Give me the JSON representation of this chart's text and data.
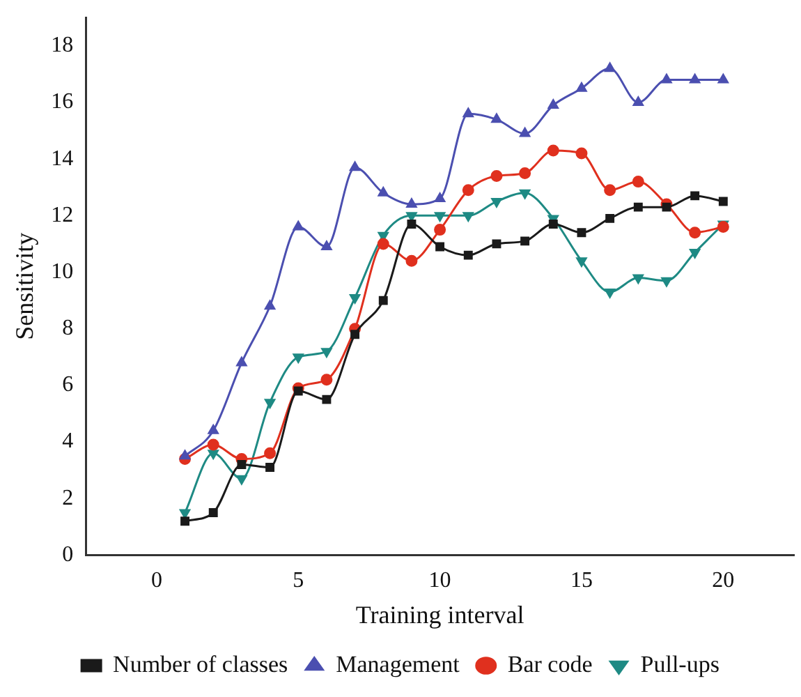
{
  "chart_data": {
    "type": "line",
    "xlabel": "Training interval",
    "ylabel": "Sensitivity",
    "x": [
      1,
      2,
      3,
      4,
      5,
      6,
      7,
      8,
      9,
      10,
      11,
      12,
      13,
      14,
      15,
      16,
      17,
      18,
      19,
      20
    ],
    "xlim": [
      -2.5,
      22.5
    ],
    "xticks": [
      0,
      5,
      10,
      15,
      20
    ],
    "ylim": [
      0,
      19
    ],
    "yticks": [
      0,
      2,
      4,
      6,
      8,
      10,
      12,
      14,
      16,
      18
    ],
    "grid": false,
    "legend": "bottom",
    "series": [
      {
        "name": "Number of classes",
        "color": "#1a1a1a",
        "marker": "square",
        "values": [
          1.2,
          1.5,
          3.2,
          3.1,
          5.8,
          5.5,
          7.8,
          9.0,
          11.7,
          10.9,
          10.6,
          11.0,
          11.1,
          11.7,
          11.4,
          11.9,
          12.3,
          12.3,
          12.7,
          12.5
        ]
      },
      {
        "name": "Management",
        "color": "#4b4fb0",
        "marker": "triangle",
        "values": [
          3.5,
          4.4,
          6.8,
          8.8,
          11.6,
          10.9,
          13.7,
          12.8,
          12.4,
          12.6,
          15.6,
          15.4,
          14.9,
          15.9,
          16.5,
          17.2,
          16.0,
          16.8,
          16.8,
          16.8
        ]
      },
      {
        "name": "Bar code",
        "color": "#e0301e",
        "marker": "circle",
        "values": [
          3.4,
          3.9,
          3.4,
          3.6,
          5.9,
          6.2,
          8.0,
          11.0,
          10.4,
          11.5,
          12.9,
          13.4,
          13.5,
          14.3,
          14.2,
          12.9,
          13.2,
          12.4,
          11.4,
          11.6
        ]
      },
      {
        "name": "Pull-ups",
        "color": "#1e8a84",
        "marker": "triangle-down",
        "values": [
          1.5,
          3.6,
          2.7,
          5.4,
          7.0,
          7.2,
          9.1,
          11.3,
          12.0,
          12.0,
          12.0,
          12.5,
          12.8,
          11.9,
          10.4,
          9.3,
          9.8,
          9.7,
          10.7,
          11.7
        ]
      }
    ]
  }
}
